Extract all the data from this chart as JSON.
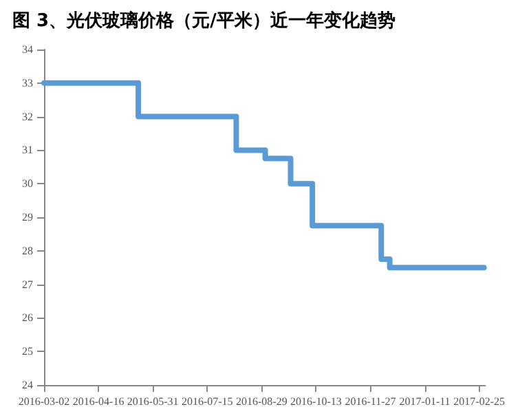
{
  "chart_data": {
    "type": "step",
    "title": "图 3、光伏玻璃价格（元/平米）近一年变化趋势",
    "x": [
      "2016-03-02",
      "2016-05-19",
      "2016-08-08",
      "2016-09-01",
      "2016-09-22",
      "2016-10-10",
      "2016-12-06",
      "2016-12-13",
      "2017-03-01"
    ],
    "series": [
      {
        "color": "#5b9bd5",
        "values": [
          33,
          32,
          31,
          30.75,
          30,
          28.75,
          27.75,
          27.5,
          27.5
        ]
      }
    ],
    "xlim": [
      "2016-03-02",
      "2017-03-02"
    ],
    "xticks": [
      "2016-03-02",
      "2016-04-16",
      "2016-05-31",
      "2016-07-15",
      "2016-08-29",
      "2016-10-13",
      "2016-11-27",
      "2017-01-11",
      "2017-02-25"
    ],
    "ylim": [
      24,
      34
    ],
    "yticks": [
      24,
      25,
      26,
      27,
      28,
      29,
      30,
      31,
      32,
      33,
      34
    ],
    "grid": false
  }
}
